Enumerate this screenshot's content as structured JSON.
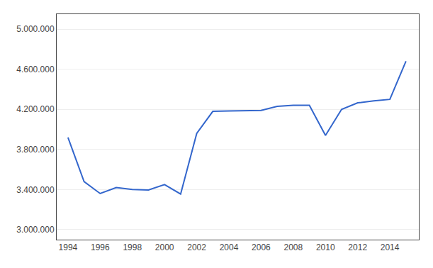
{
  "chart_data": {
    "type": "line",
    "x": [
      1994,
      1995,
      1996,
      1997,
      1998,
      1999,
      2000,
      2001,
      2002,
      2003,
      2004,
      2005,
      2006,
      2007,
      2008,
      2009,
      2010,
      2011,
      2012,
      2013,
      2014,
      2015
    ],
    "values": [
      3920000,
      3480000,
      3360000,
      3420000,
      3400000,
      3395000,
      3450000,
      3355000,
      3960000,
      4180000,
      4185000,
      4190000,
      4190000,
      4230000,
      4240000,
      4240000,
      3940000,
      4200000,
      4265000,
      4285000,
      4300000,
      4680000
    ],
    "color": "#3366CC",
    "xlim": [
      1993.3,
      2015.8
    ],
    "xticks": [
      1994,
      1996,
      1998,
      2000,
      2002,
      2004,
      2006,
      2008,
      2010,
      2012,
      2014
    ],
    "ylim": [
      2900000,
      5150000
    ],
    "yticks": [
      {
        "value": 3000000,
        "label": "3.000.000"
      },
      {
        "value": 3400000,
        "label": "3.400.000"
      },
      {
        "value": 3800000,
        "label": "3.800.000"
      },
      {
        "value": 4200000,
        "label": "4.200.000"
      },
      {
        "value": 4600000,
        "label": "4.600.000"
      },
      {
        "value": 5000000,
        "label": "5.000.000"
      }
    ],
    "grid": "y"
  }
}
